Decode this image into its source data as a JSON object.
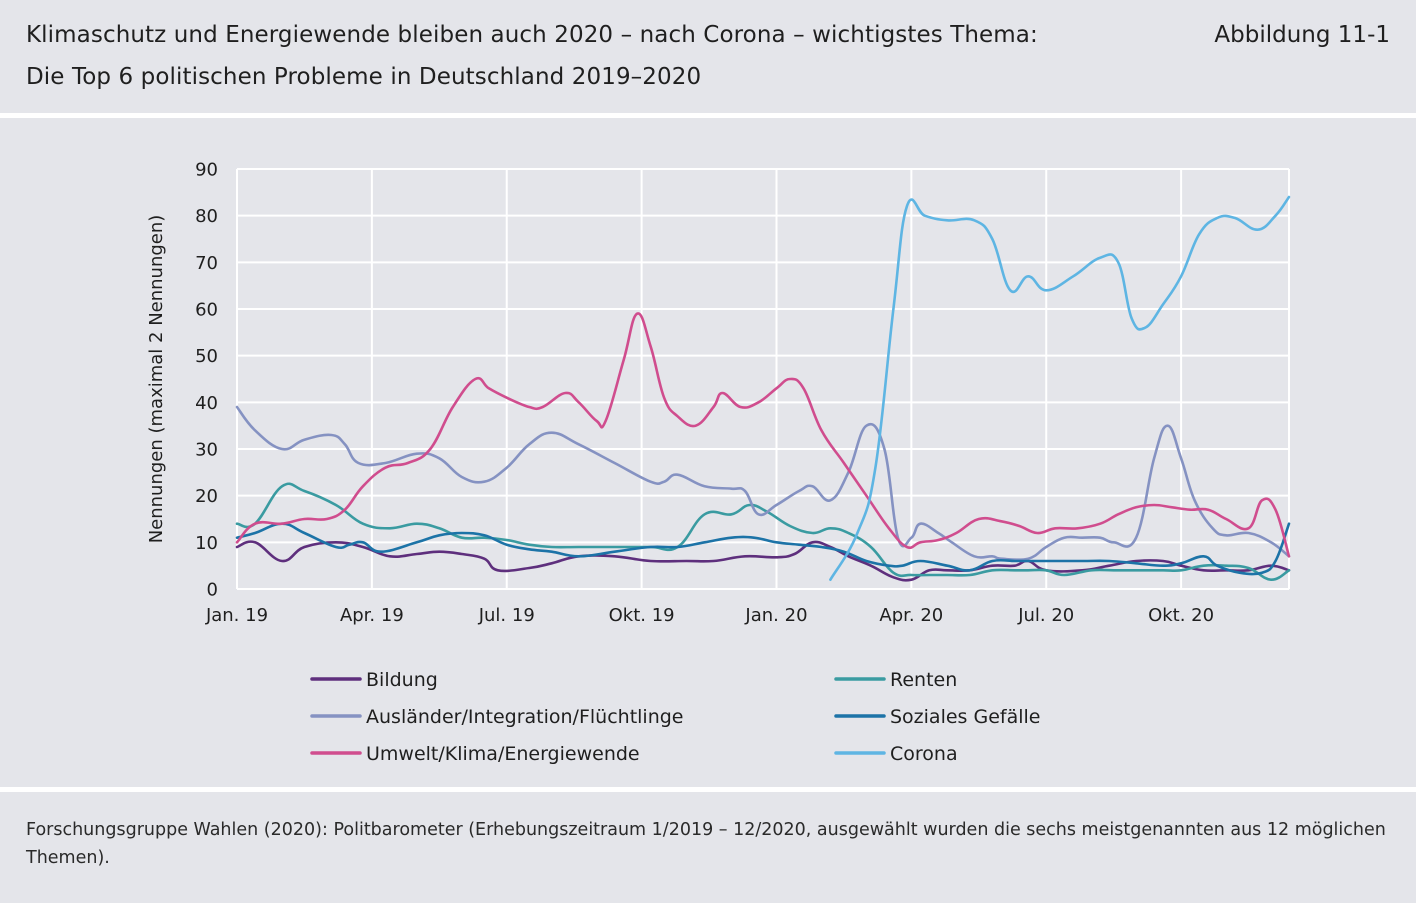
{
  "header": {
    "title_line1": "Klimaschutz und Energiewende bleiben auch 2020 – nach Corona – wichtigstes Thema:",
    "title_line2": "Die Top 6 politischen Probleme in Deutschland 2019–2020",
    "figure_label": "Abbildung 11-1"
  },
  "footer": {
    "source": "Forschungsgruppe Wahlen (2020): Politbarometer (Erhebungszeitraum 1/2019 – 12/2020, ausgewählt wurden die sechs meistgenannten aus 12 möglichen Themen)."
  },
  "chart_data": {
    "type": "line",
    "ylabel": "Nennungen (maximal 2 Nennungen)",
    "ylim": [
      0,
      90
    ],
    "yticks": [
      0,
      10,
      20,
      30,
      40,
      50,
      60,
      70,
      80,
      90
    ],
    "xlim": [
      0,
      23.4
    ],
    "xticks": [
      {
        "x": 0,
        "label": "Jan. 19"
      },
      {
        "x": 3,
        "label": "Apr. 19"
      },
      {
        "x": 6,
        "label": "Jul. 19"
      },
      {
        "x": 9,
        "label": "Okt. 19"
      },
      {
        "x": 12,
        "label": "Jan. 20"
      },
      {
        "x": 15,
        "label": "Apr. 20"
      },
      {
        "x": 18,
        "label": "Jul. 20"
      },
      {
        "x": 21,
        "label": "Okt. 20"
      }
    ],
    "grid": true,
    "legend_position": "bottom",
    "series": [
      {
        "name": "Bildung",
        "color": "#5e2f7d",
        "points": [
          [
            0,
            9
          ],
          [
            0.4,
            10
          ],
          [
            1,
            6
          ],
          [
            1.5,
            9
          ],
          [
            2.2,
            10
          ],
          [
            2.8,
            9
          ],
          [
            3.4,
            7
          ],
          [
            4,
            7.5
          ],
          [
            4.5,
            8
          ],
          [
            5,
            7.5
          ],
          [
            5.5,
            6.5
          ],
          [
            5.8,
            4
          ],
          [
            6.5,
            4.5
          ],
          [
            7,
            5.5
          ],
          [
            7.6,
            7
          ],
          [
            8.4,
            7
          ],
          [
            9.2,
            6
          ],
          [
            10,
            6
          ],
          [
            10.6,
            6
          ],
          [
            11.3,
            7
          ],
          [
            12,
            6.8
          ],
          [
            12.4,
            7.5
          ],
          [
            12.8,
            10
          ],
          [
            13.2,
            9
          ],
          [
            13.6,
            7
          ],
          [
            14.1,
            5
          ],
          [
            14.6,
            2.5
          ],
          [
            15,
            2
          ],
          [
            15.4,
            4
          ],
          [
            15.8,
            4
          ],
          [
            16.3,
            4
          ],
          [
            16.8,
            5
          ],
          [
            17.3,
            5
          ],
          [
            17.6,
            6
          ],
          [
            18,
            4
          ],
          [
            18.8,
            4
          ],
          [
            19.4,
            5
          ],
          [
            20,
            6
          ],
          [
            20.6,
            6
          ],
          [
            21,
            5
          ],
          [
            21.5,
            4
          ],
          [
            22,
            4
          ],
          [
            22.5,
            4
          ],
          [
            23,
            5
          ],
          [
            23.4,
            4
          ]
        ]
      },
      {
        "name": "Renten",
        "color": "#3a9ba1",
        "points": [
          [
            0,
            14
          ],
          [
            0.4,
            14
          ],
          [
            1,
            22
          ],
          [
            1.5,
            21
          ],
          [
            2.2,
            18
          ],
          [
            2.8,
            14
          ],
          [
            3.4,
            13
          ],
          [
            4,
            14
          ],
          [
            4.5,
            13
          ],
          [
            5,
            11
          ],
          [
            5.5,
            11
          ],
          [
            6,
            10.5
          ],
          [
            6.5,
            9.5
          ],
          [
            7,
            9
          ],
          [
            7.6,
            9
          ],
          [
            8.4,
            9
          ],
          [
            9.2,
            9
          ],
          [
            9.8,
            9
          ],
          [
            10.4,
            16
          ],
          [
            11,
            16
          ],
          [
            11.4,
            18
          ],
          [
            11.8,
            16.5
          ],
          [
            12.3,
            13.5
          ],
          [
            12.8,
            12
          ],
          [
            13.2,
            13
          ],
          [
            13.6,
            12
          ],
          [
            14.1,
            9
          ],
          [
            14.6,
            3.5
          ],
          [
            15,
            3
          ],
          [
            15.4,
            3
          ],
          [
            15.8,
            3
          ],
          [
            16.3,
            3
          ],
          [
            16.8,
            4
          ],
          [
            17.3,
            4
          ],
          [
            17.6,
            4
          ],
          [
            18,
            4
          ],
          [
            18.4,
            3
          ],
          [
            19,
            4
          ],
          [
            19.5,
            4
          ],
          [
            20,
            4
          ],
          [
            20.6,
            4
          ],
          [
            21,
            4
          ],
          [
            21.5,
            5
          ],
          [
            22,
            5
          ],
          [
            22.5,
            4.5
          ],
          [
            23,
            2
          ],
          [
            23.4,
            4
          ]
        ]
      },
      {
        "name": "Ausländer/Integration/Flüchtlinge",
        "color": "#8592c2",
        "points": [
          [
            0,
            39
          ],
          [
            0.4,
            34
          ],
          [
            1,
            30
          ],
          [
            1.5,
            32
          ],
          [
            2.1,
            33
          ],
          [
            2.4,
            31
          ],
          [
            2.7,
            27
          ],
          [
            3.3,
            27
          ],
          [
            4,
            29
          ],
          [
            4.5,
            28
          ],
          [
            5,
            24
          ],
          [
            5.5,
            23
          ],
          [
            6,
            26
          ],
          [
            6.5,
            31
          ],
          [
            7,
            33.5
          ],
          [
            7.6,
            31
          ],
          [
            8.4,
            27
          ],
          [
            9.2,
            23
          ],
          [
            9.5,
            23
          ],
          [
            9.8,
            24.5
          ],
          [
            10.4,
            22
          ],
          [
            11,
            21.5
          ],
          [
            11.3,
            21
          ],
          [
            11.6,
            16
          ],
          [
            12,
            18
          ],
          [
            12.5,
            21
          ],
          [
            12.8,
            22
          ],
          [
            13.2,
            19
          ],
          [
            13.6,
            25
          ],
          [
            14,
            35
          ],
          [
            14.4,
            30
          ],
          [
            14.7,
            11
          ],
          [
            15,
            11
          ],
          [
            15.2,
            14
          ],
          [
            15.6,
            12
          ],
          [
            15.9,
            10
          ],
          [
            16.4,
            7
          ],
          [
            16.8,
            7
          ],
          [
            17,
            6.5
          ],
          [
            17.6,
            6.5
          ],
          [
            18,
            9
          ],
          [
            18.4,
            11
          ],
          [
            18.8,
            11
          ],
          [
            19.2,
            11
          ],
          [
            19.5,
            10
          ],
          [
            20,
            11
          ],
          [
            20.4,
            28
          ],
          [
            20.7,
            35
          ],
          [
            21,
            28
          ],
          [
            21.3,
            19
          ],
          [
            21.7,
            13
          ],
          [
            22,
            11.5
          ],
          [
            22.5,
            12
          ],
          [
            23,
            10
          ],
          [
            23.4,
            7
          ]
        ]
      },
      {
        "name": "Soziales Gefälle",
        "color": "#1c73a7",
        "points": [
          [
            0,
            11
          ],
          [
            0.4,
            12
          ],
          [
            1,
            14
          ],
          [
            1.5,
            12
          ],
          [
            2.2,
            9
          ],
          [
            2.5,
            9.5
          ],
          [
            2.8,
            10
          ],
          [
            3.2,
            8
          ],
          [
            4,
            10
          ],
          [
            4.5,
            11.5
          ],
          [
            5,
            12
          ],
          [
            5.5,
            11.5
          ],
          [
            6,
            9.5
          ],
          [
            6.5,
            8.5
          ],
          [
            7,
            8
          ],
          [
            7.6,
            7
          ],
          [
            8.4,
            8
          ],
          [
            9.2,
            9
          ],
          [
            9.8,
            9
          ],
          [
            10.4,
            10
          ],
          [
            11,
            11
          ],
          [
            11.5,
            11
          ],
          [
            12,
            10
          ],
          [
            12.5,
            9.5
          ],
          [
            13,
            9
          ],
          [
            13.5,
            8
          ],
          [
            14,
            6
          ],
          [
            14.5,
            5
          ],
          [
            14.8,
            5
          ],
          [
            15.2,
            6
          ],
          [
            15.8,
            5
          ],
          [
            16.3,
            4
          ],
          [
            16.8,
            6
          ],
          [
            17.3,
            6
          ],
          [
            17.6,
            6
          ],
          [
            18,
            6
          ],
          [
            18.8,
            6
          ],
          [
            19.4,
            6
          ],
          [
            20,
            5.5
          ],
          [
            20.6,
            5
          ],
          [
            21,
            5.5
          ],
          [
            21.5,
            7
          ],
          [
            21.8,
            5
          ],
          [
            22.3,
            3.5
          ],
          [
            22.8,
            3.5
          ],
          [
            23.1,
            6
          ],
          [
            23.4,
            14
          ]
        ]
      },
      {
        "name": "Umwelt/Klima/Energiewende",
        "color": "#d04d8e",
        "points": [
          [
            0,
            10
          ],
          [
            0.4,
            14
          ],
          [
            1,
            14
          ],
          [
            1.5,
            15
          ],
          [
            2,
            15
          ],
          [
            2.4,
            17
          ],
          [
            2.8,
            22
          ],
          [
            3.3,
            26
          ],
          [
            3.8,
            27
          ],
          [
            4.3,
            30
          ],
          [
            4.8,
            39
          ],
          [
            5.3,
            45
          ],
          [
            5.6,
            43
          ],
          [
            6,
            41
          ],
          [
            6.5,
            39
          ],
          [
            6.8,
            39
          ],
          [
            7.3,
            42
          ],
          [
            7.6,
            40
          ],
          [
            8,
            36
          ],
          [
            8.2,
            36
          ],
          [
            8.6,
            49
          ],
          [
            8.9,
            59
          ],
          [
            9.2,
            52
          ],
          [
            9.5,
            41
          ],
          [
            9.8,
            37
          ],
          [
            10.2,
            35
          ],
          [
            10.6,
            39
          ],
          [
            10.8,
            42
          ],
          [
            11.2,
            39
          ],
          [
            11.6,
            40
          ],
          [
            12,
            43
          ],
          [
            12.3,
            45
          ],
          [
            12.6,
            43
          ],
          [
            13,
            34
          ],
          [
            13.5,
            27
          ],
          [
            14,
            20
          ],
          [
            14.5,
            13
          ],
          [
            14.9,
            9
          ],
          [
            15.2,
            10
          ],
          [
            15.6,
            10.5
          ],
          [
            16,
            12
          ],
          [
            16.5,
            15
          ],
          [
            17,
            14.5
          ],
          [
            17.4,
            13.5
          ],
          [
            17.8,
            12
          ],
          [
            18.2,
            13
          ],
          [
            18.7,
            13
          ],
          [
            19.2,
            14
          ],
          [
            19.6,
            16
          ],
          [
            20,
            17.5
          ],
          [
            20.4,
            18
          ],
          [
            20.8,
            17.5
          ],
          [
            21.2,
            17
          ],
          [
            21.6,
            17
          ],
          [
            22,
            15
          ],
          [
            22.5,
            13
          ],
          [
            22.8,
            19
          ],
          [
            23.1,
            17
          ],
          [
            23.4,
            7
          ]
        ]
      },
      {
        "name": "Corona",
        "color": "#5eb5e3",
        "points": [
          [
            13.2,
            2
          ],
          [
            13.8,
            12
          ],
          [
            14.2,
            26
          ],
          [
            14.6,
            60
          ],
          [
            14.9,
            82
          ],
          [
            15.3,
            80
          ],
          [
            15.8,
            79
          ],
          [
            16.4,
            79
          ],
          [
            16.8,
            75
          ],
          [
            17.2,
            64
          ],
          [
            17.6,
            67
          ],
          [
            18,
            64
          ],
          [
            18.6,
            67
          ],
          [
            19.2,
            71
          ],
          [
            19.6,
            70
          ],
          [
            19.9,
            58
          ],
          [
            20.2,
            56
          ],
          [
            20.6,
            61
          ],
          [
            21,
            67
          ],
          [
            21.4,
            76
          ],
          [
            21.8,
            79.5
          ],
          [
            22.2,
            79.5
          ],
          [
            22.7,
            77
          ],
          [
            23.1,
            80
          ],
          [
            23.4,
            84
          ]
        ]
      }
    ]
  }
}
